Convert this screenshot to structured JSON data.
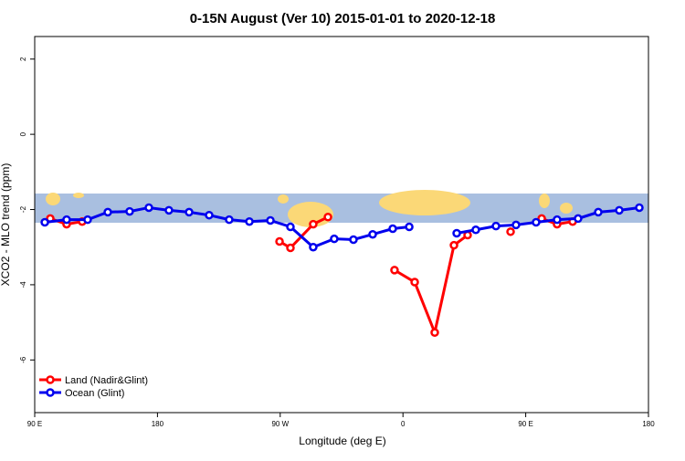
{
  "chart_data": {
    "type": "line",
    "title": "0-15N August (Ver 10)   2015-01-01 to 2020-12-18",
    "x_label": "Longitude (deg E)",
    "y_label": "XCO2 - MLO trend (ppm)",
    "xlim": [
      90,
      540
    ],
    "xticks": [
      {
        "value": 90,
        "label": "90 E"
      },
      180,
      {
        "value": 270,
        "label": "90 W"
      },
      {
        "value": 360,
        "label": "0"
      },
      {
        "value": 450,
        "label": "90 E"
      },
      {
        "value": 540,
        "label": "180"
      }
    ],
    "ylim": [
      -7.4,
      2.6
    ],
    "yticks": [
      2,
      0,
      -2,
      -4,
      -6
    ],
    "legend": "bottom-left",
    "series": [
      {
        "name": "Land (Nadir&Glint)",
        "color": "#ff0000",
        "x": [
          101.4,
          113.4,
          124.8,
          null,
          269.5,
          277.5,
          294.2,
          305.0,
          null,
          353.8,
          368.6,
          383.3,
          397.4,
          407.4,
          null,
          438.9,
          null,
          461.7,
          473.0,
          484.4
        ],
        "values": [
          -2.24,
          -2.39,
          -2.32,
          null,
          -2.85,
          -3.02,
          -2.39,
          -2.2,
          null,
          -3.61,
          -3.93,
          -5.27,
          -2.95,
          -2.68,
          null,
          -2.59,
          null,
          -2.24,
          -2.39,
          -2.32
        ]
      },
      {
        "name": "Ocean (Glint)",
        "color": "#0000ee",
        "x": [
          97.4,
          113.4,
          128.8,
          143.6,
          159.6,
          173.7,
          188.4,
          203.2,
          217.9,
          232.6,
          247.4,
          262.8,
          277.5,
          294.2,
          309.6,
          323.7,
          337.8,
          352.5,
          364.6,
          null,
          399.4,
          413.4,
          428.2,
          442.9,
          457.6,
          473.0,
          488.4,
          503.2,
          518.6,
          533.3
        ],
        "values": [
          -2.34,
          -2.27,
          -2.27,
          -2.07,
          -2.05,
          -1.95,
          -2.02,
          -2.07,
          -2.15,
          -2.27,
          -2.32,
          -2.29,
          -2.46,
          -3.0,
          -2.78,
          -2.8,
          -2.66,
          -2.51,
          -2.46,
          null,
          -2.63,
          -2.54,
          -2.44,
          -2.41,
          -2.34,
          -2.27,
          -2.24,
          -2.07,
          -2.02,
          -1.95
        ]
      }
    ]
  }
}
